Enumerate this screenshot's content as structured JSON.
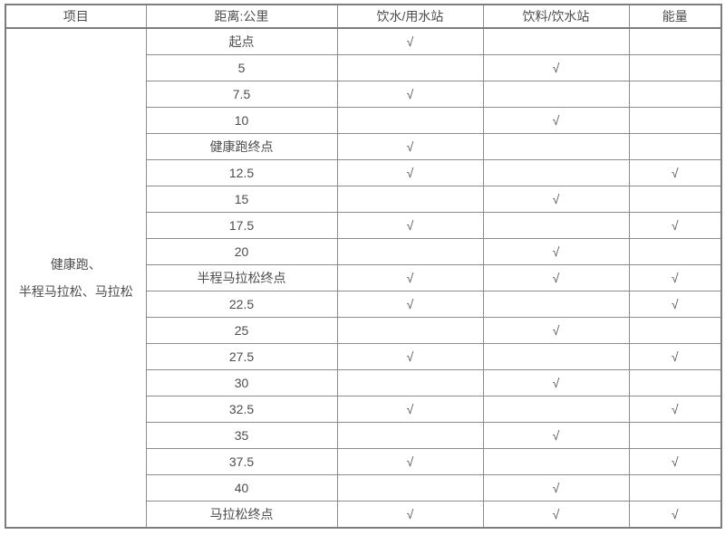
{
  "colors": {
    "border_outer": "#7d7d7d",
    "border_inner": "#8c8c8c",
    "text": "#4d4d4d",
    "background": "#ffffff"
  },
  "table": {
    "headers": [
      "项目",
      "距离:公里",
      "饮水/用水站",
      "饮料/饮水站",
      "能量"
    ],
    "item_lines": [
      "健康跑、",
      "半程马拉松、马拉松"
    ],
    "check_symbol": "√",
    "rows": [
      {
        "distance": "起点",
        "marks": [
          "√",
          "",
          ""
        ]
      },
      {
        "distance": "5",
        "marks": [
          "",
          "√",
          ""
        ]
      },
      {
        "distance": "7.5",
        "marks": [
          "√",
          "",
          ""
        ]
      },
      {
        "distance": "10",
        "marks": [
          "",
          "√",
          ""
        ]
      },
      {
        "distance": "健康跑终点",
        "marks": [
          "√",
          "",
          ""
        ]
      },
      {
        "distance": "12.5",
        "marks": [
          "√",
          "",
          "√"
        ]
      },
      {
        "distance": "15",
        "marks": [
          "",
          "√",
          ""
        ]
      },
      {
        "distance": "17.5",
        "marks": [
          "√",
          "",
          "√"
        ]
      },
      {
        "distance": "20",
        "marks": [
          "",
          "√",
          ""
        ]
      },
      {
        "distance": "半程马拉松终点",
        "marks": [
          "√",
          "√",
          "√"
        ]
      },
      {
        "distance": "22.5",
        "marks": [
          "√",
          "",
          "√"
        ]
      },
      {
        "distance": "25",
        "marks": [
          "",
          "√",
          ""
        ]
      },
      {
        "distance": "27.5",
        "marks": [
          "√",
          "",
          "√"
        ]
      },
      {
        "distance": "30",
        "marks": [
          "",
          "√",
          ""
        ]
      },
      {
        "distance": "32.5",
        "marks": [
          "√",
          "",
          "√"
        ]
      },
      {
        "distance": "35",
        "marks": [
          "",
          "√",
          ""
        ]
      },
      {
        "distance": "37.5",
        "marks": [
          "√",
          "",
          "√"
        ]
      },
      {
        "distance": "40",
        "marks": [
          "",
          "√",
          ""
        ]
      },
      {
        "distance": "马拉松终点",
        "marks": [
          "√",
          "√",
          "√"
        ]
      }
    ]
  }
}
